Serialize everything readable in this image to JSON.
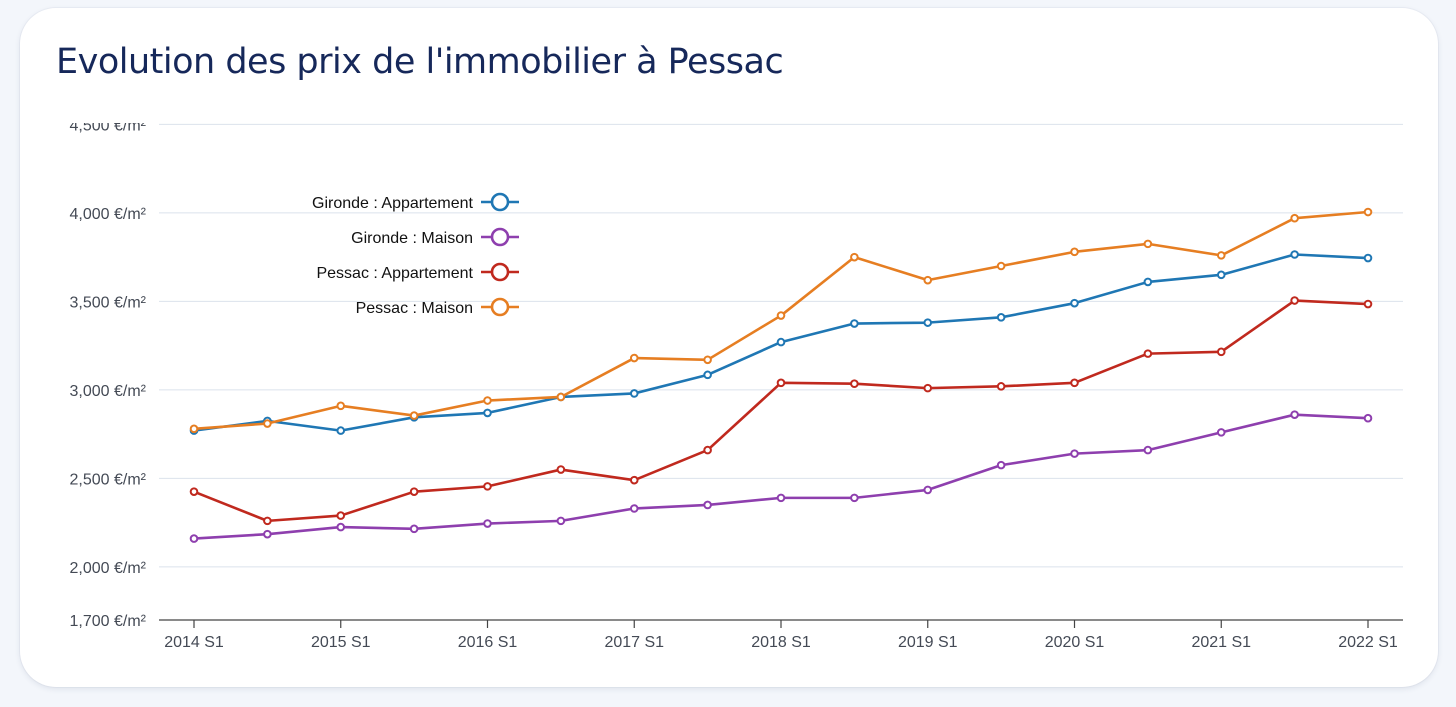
{
  "chart_data": {
    "type": "line",
    "title": "Evolution des prix de l'immobilier à Pessac",
    "xlabel": "",
    "ylabel": "",
    "x": [
      "2014 S1",
      "2014 S2",
      "2015 S1",
      "2015 S2",
      "2016 S1",
      "2016 S2",
      "2017 S1",
      "2017 S2",
      "2018 S1",
      "2018 S2",
      "2019 S1",
      "2019 S2",
      "2020 S1",
      "2020 S2",
      "2021 S1",
      "2021 S2",
      "2022 S1"
    ],
    "x_tick_labels": [
      "2014 S1",
      "2015 S1",
      "2016 S1",
      "2017 S1",
      "2018 S1",
      "2019 S1",
      "2020 S1",
      "2021 S1",
      "2022 S1"
    ],
    "y_tick_labels": [
      "1,700 €/m²",
      "2,000 €/m²",
      "2,500 €/m²",
      "3,000 €/m²",
      "3,500 €/m²",
      "4,000 €/m²",
      "4,500 €/m²"
    ],
    "y_ticks": [
      1700,
      2000,
      2500,
      3000,
      3500,
      4000,
      4500
    ],
    "ylim": [
      1700,
      4500
    ],
    "grid": true,
    "legend_position": "top-left",
    "series": [
      {
        "name": "Gironde : Appartement",
        "color": "#1f77b4",
        "values": [
          2770,
          2825,
          2770,
          2845,
          2870,
          2960,
          2980,
          3085,
          3270,
          3375,
          3380,
          3410,
          3490,
          3610,
          3650,
          3765,
          3745
        ]
      },
      {
        "name": "Gironde : Maison",
        "color": "#8e3fae",
        "values": [
          2160,
          2185,
          2225,
          2215,
          2245,
          2260,
          2330,
          2350,
          2390,
          2390,
          2435,
          2575,
          2640,
          2660,
          2760,
          2860,
          2840
        ]
      },
      {
        "name": "Pessac : Appartement",
        "color": "#c0291e",
        "values": [
          2425,
          2260,
          2290,
          2425,
          2455,
          2550,
          2490,
          2660,
          3040,
          3035,
          3010,
          3020,
          3040,
          3205,
          3215,
          3505,
          3485
        ]
      },
      {
        "name": "Pessac : Maison",
        "color": "#e67e22",
        "values": [
          2780,
          2810,
          2910,
          2855,
          2940,
          2960,
          3180,
          3170,
          3420,
          3750,
          3620,
          3700,
          3780,
          3825,
          3760,
          3970,
          4005
        ]
      }
    ]
  }
}
